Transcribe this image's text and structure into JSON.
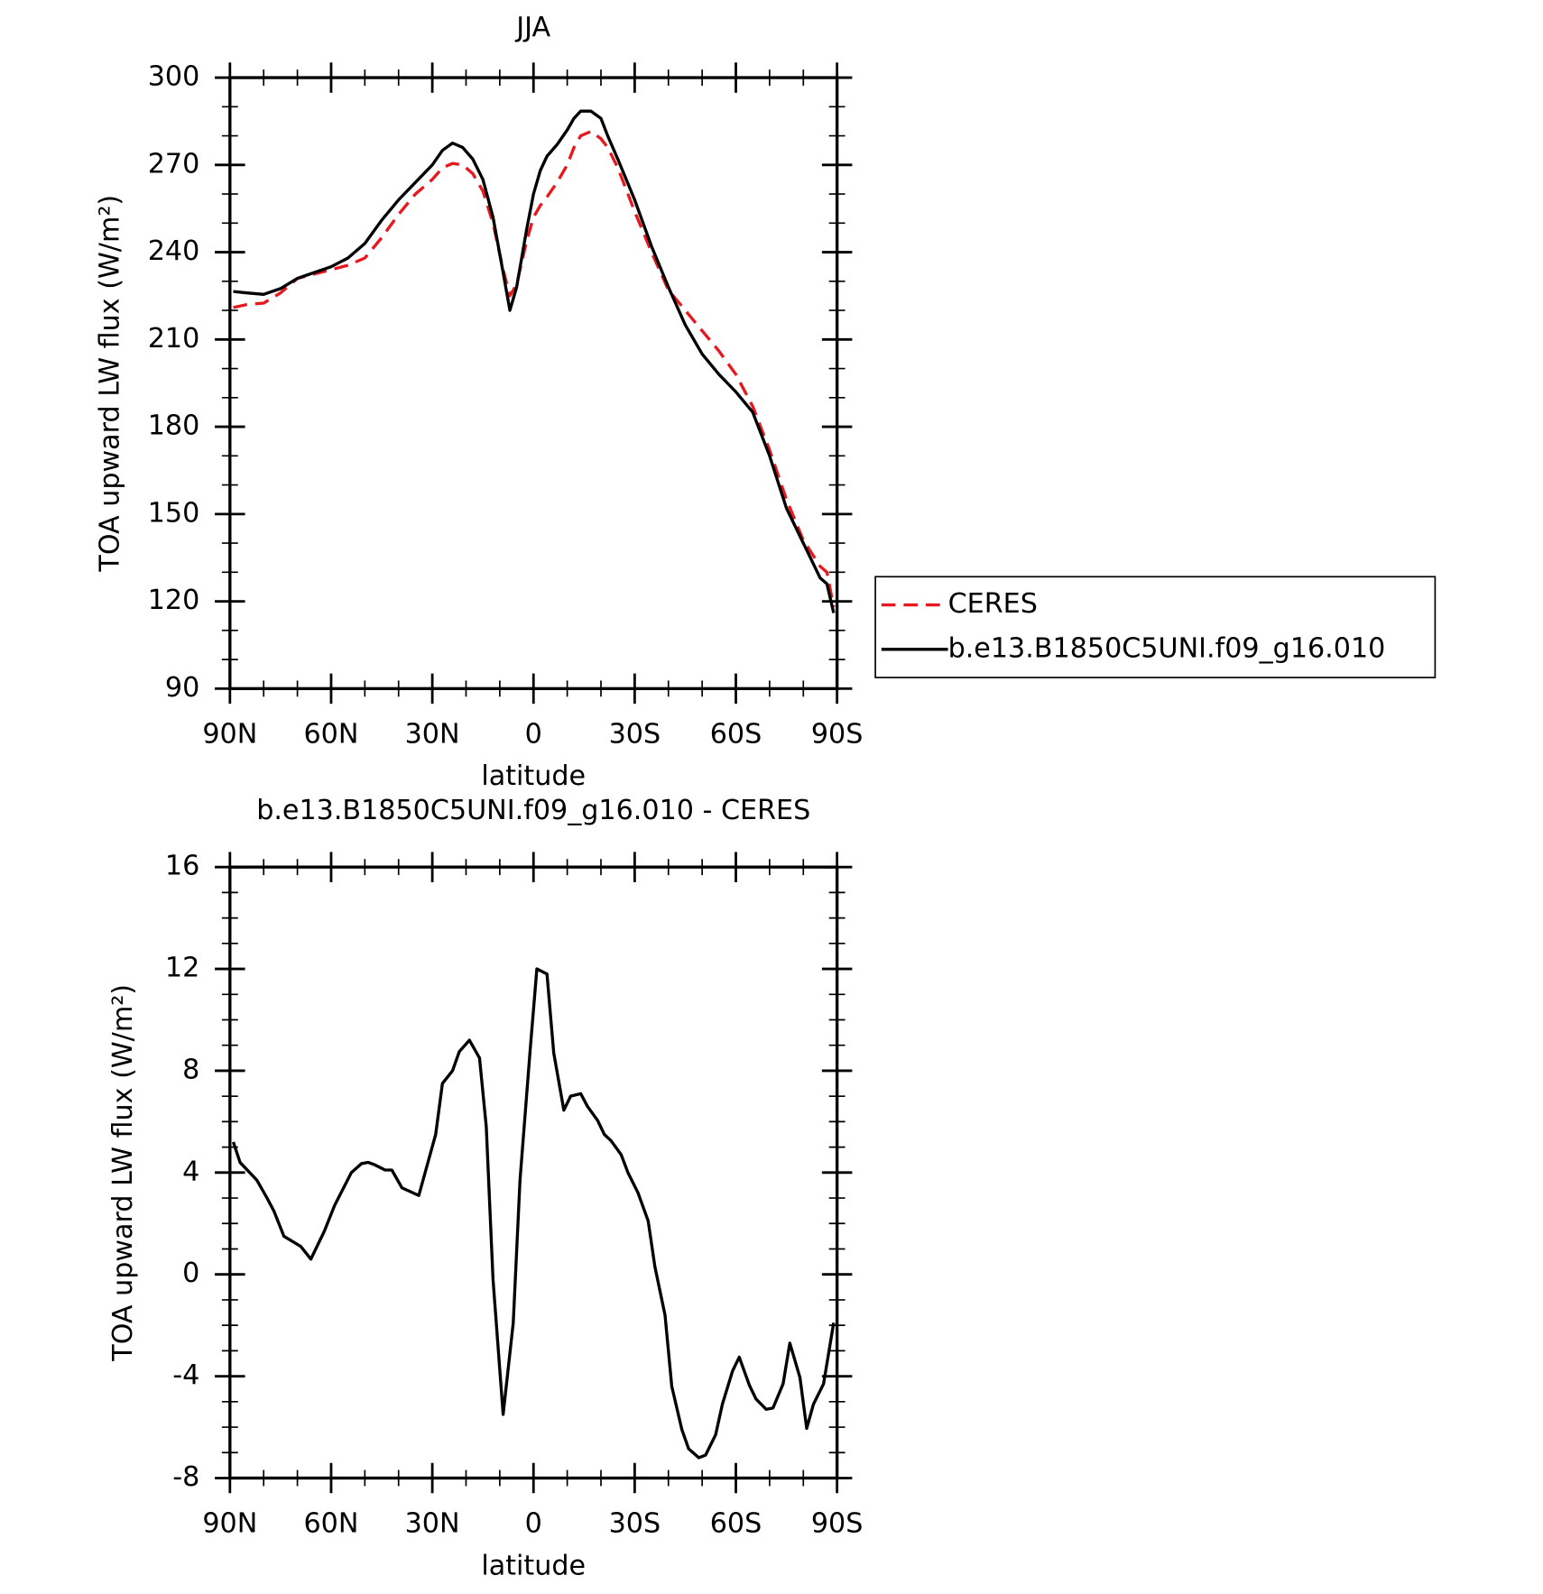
{
  "chart_data": [
    {
      "type": "line",
      "title": "JJA",
      "x_label": "latitude",
      "y_label": "TOA upward LW flux (W/m²)",
      "x": [
        89,
        85,
        80,
        75,
        70,
        65,
        60,
        55,
        50,
        45,
        40,
        35,
        30,
        27,
        24,
        21,
        18,
        15,
        12,
        9,
        7,
        5,
        2,
        0,
        -2,
        -4,
        -7,
        -10,
        -12,
        -14,
        -17,
        -20,
        -22,
        -25,
        -30,
        -35,
        -40,
        -45,
        -50,
        -55,
        -60,
        -65,
        -70,
        -75,
        -80,
        -85,
        -87,
        -89
      ],
      "series": [
        {
          "name": "CERES",
          "color": "#e8191e",
          "dash": true,
          "values": [
            221,
            222,
            222.5,
            226,
            231,
            232.5,
            234,
            235.5,
            238,
            245,
            253,
            260,
            265,
            269,
            270.5,
            270,
            267,
            261,
            250,
            234,
            225,
            229,
            244,
            252,
            256,
            259,
            264,
            270,
            276,
            280,
            281.5,
            279,
            276,
            269,
            254,
            240,
            227,
            220,
            213,
            206,
            198,
            187,
            172,
            155,
            141,
            132,
            130,
            118
          ]
        },
        {
          "name": "b.e13.B1850C5UNI.f09_g16.010",
          "color": "#000000",
          "dash": false,
          "values": [
            226.5,
            226,
            225.5,
            227.5,
            231,
            233,
            235,
            238,
            243,
            251,
            258,
            264,
            270,
            275,
            277.5,
            276,
            272,
            265,
            252,
            233,
            220,
            228,
            248,
            260,
            268,
            273,
            277,
            282,
            286,
            288.5,
            288.5,
            286,
            280,
            272,
            258,
            242,
            228,
            215,
            205,
            198,
            192,
            185,
            170,
            152,
            140,
            128,
            126,
            116
          ]
        }
      ],
      "xlim": [
        90,
        -90
      ],
      "xticks": [
        {
          "value": 90,
          "label": "90N"
        },
        {
          "value": 60,
          "label": "60N"
        },
        {
          "value": 30,
          "label": "30N"
        },
        0,
        {
          "value": -30,
          "label": "30S"
        },
        {
          "value": -60,
          "label": "60S"
        },
        {
          "value": -90,
          "label": "90S"
        }
      ],
      "ylim": [
        90,
        300
      ],
      "yticks": [
        90,
        120,
        150,
        180,
        210,
        240,
        270,
        300
      ],
      "legend": "right"
    },
    {
      "type": "line",
      "title": "b.e13.B1850C5UNI.f09_g16.010 - CERES",
      "x_label": "latitude",
      "y_label": "TOA upward LW flux (W/m²)",
      "x": [
        89,
        87,
        82,
        79,
        77,
        74,
        69,
        66,
        62,
        59,
        54,
        51,
        49,
        47,
        44,
        42,
        39,
        34,
        29,
        27,
        24,
        22,
        19,
        16,
        14,
        12,
        9,
        6,
        4,
        1,
        -1,
        -4,
        -6,
        -9,
        -11,
        -14,
        -16,
        -19,
        -21,
        -23,
        -26,
        -28,
        -31,
        -34,
        -36,
        -39,
        -41,
        -44,
        -46,
        -49,
        -51,
        -54,
        -56,
        -59,
        -61,
        -64,
        -66,
        -69,
        -71,
        -74,
        -76,
        -79,
        -81,
        -83,
        -86,
        -89
      ],
      "series": [
        {
          "name": "b.e13.B1850C5UNI.f09_g16.010 - CERES",
          "color": "#000000",
          "dash": false,
          "values": [
            5.2,
            4.4,
            3.7,
            3.0,
            2.5,
            1.5,
            1.1,
            0.6,
            1.7,
            2.7,
            4.0,
            4.35,
            4.4,
            4.3,
            4.1,
            4.1,
            3.4,
            3.1,
            5.5,
            7.5,
            8.0,
            8.75,
            9.2,
            8.5,
            5.8,
            -0.2,
            -5.5,
            -1.9,
            3.7,
            8.8,
            12.0,
            11.8,
            8.7,
            6.45,
            7.0,
            7.1,
            6.6,
            6.05,
            5.5,
            5.25,
            4.7,
            4.0,
            3.2,
            2.1,
            0.3,
            -1.6,
            -4.4,
            -6.1,
            -6.85,
            -7.2,
            -7.1,
            -6.3,
            -5.1,
            -3.8,
            -3.25,
            -4.35,
            -4.9,
            -5.3,
            -5.25,
            -4.3,
            -2.7,
            -4.05,
            -6.05,
            -5.1,
            -4.3,
            -1.9
          ]
        }
      ],
      "xlim": [
        90,
        -90
      ],
      "xticks": [
        {
          "value": 90,
          "label": "90N"
        },
        {
          "value": 60,
          "label": "60N"
        },
        {
          "value": 30,
          "label": "30N"
        },
        0,
        {
          "value": -30,
          "label": "30S"
        },
        {
          "value": -60,
          "label": "60S"
        },
        {
          "value": -90,
          "label": "90S"
        }
      ],
      "ylim": [
        -8,
        16
      ],
      "yticks": [
        -8,
        -4,
        0,
        4,
        8,
        12,
        16
      ]
    }
  ]
}
